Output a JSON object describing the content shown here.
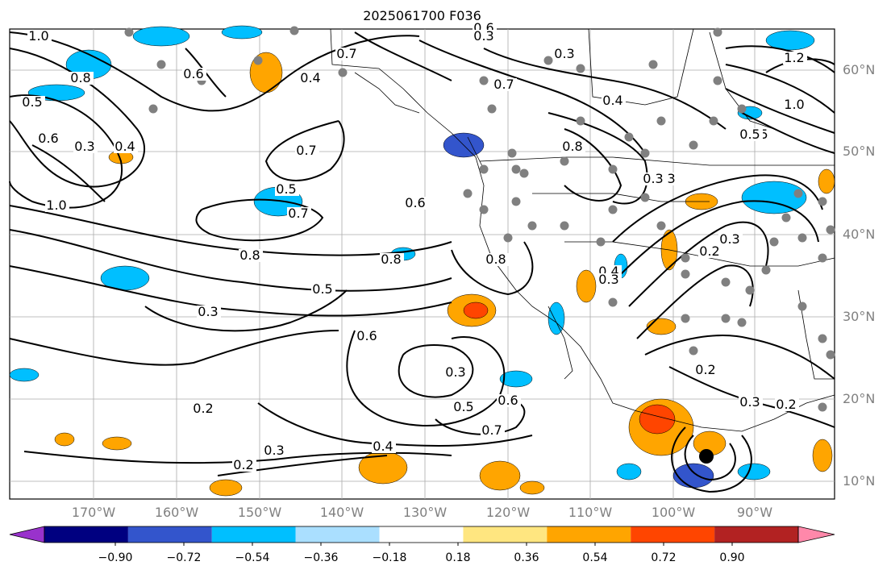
{
  "title": "2025061700 F036",
  "lat_labels": [
    "60°N",
    "50°N",
    "40°N",
    "30°N",
    "20°N",
    "10°N"
  ],
  "lon_labels": [
    "170°W",
    "160°W",
    "150°W",
    "140°W",
    "130°W",
    "120°W",
    "110°W",
    "100°W",
    "90°W"
  ],
  "colorbar": {
    "ticks": [
      "−0.90",
      "−0.72",
      "−0.54",
      "−0.36",
      "−0.18",
      "0.18",
      "0.36",
      "0.54",
      "0.72",
      "0.90"
    ],
    "colors": [
      "#9932cc",
      "#000080",
      "#3355cc",
      "#00bfff",
      "#aadfff",
      "#ffffff",
      "#ffe680",
      "#ffa500",
      "#ff4500",
      "#b22222",
      "#ff88aa"
    ]
  },
  "contour_labels": [
    "1.0",
    "0.6",
    "0.8",
    "0.5",
    "0.6",
    "0.3",
    "0.4",
    "0.8",
    "1.0",
    "0.6",
    "0.4",
    "0.7",
    "0.5",
    "0.7",
    "0.6",
    "0.8",
    "0.8",
    "0.5",
    "0.3",
    "0.2",
    "0.3",
    "0.2",
    "0.4",
    "0.5",
    "0.6",
    "0.7",
    "0.6",
    "0.3",
    "0.7",
    "0.2",
    "0.3",
    "0.7",
    "0.8",
    "0.4",
    "0.8",
    "0.3",
    "0.4",
    "0.3",
    "0.5",
    "1.2",
    "1.0",
    "0.5",
    "0.3",
    "0.2",
    "0.3",
    "0.2",
    "0.3",
    "0.3"
  ],
  "colors": {
    "shade_blue": "#00bfff",
    "shade_orange": "#ffa500",
    "shade_red": "#ff4500",
    "dot": "#808080"
  }
}
